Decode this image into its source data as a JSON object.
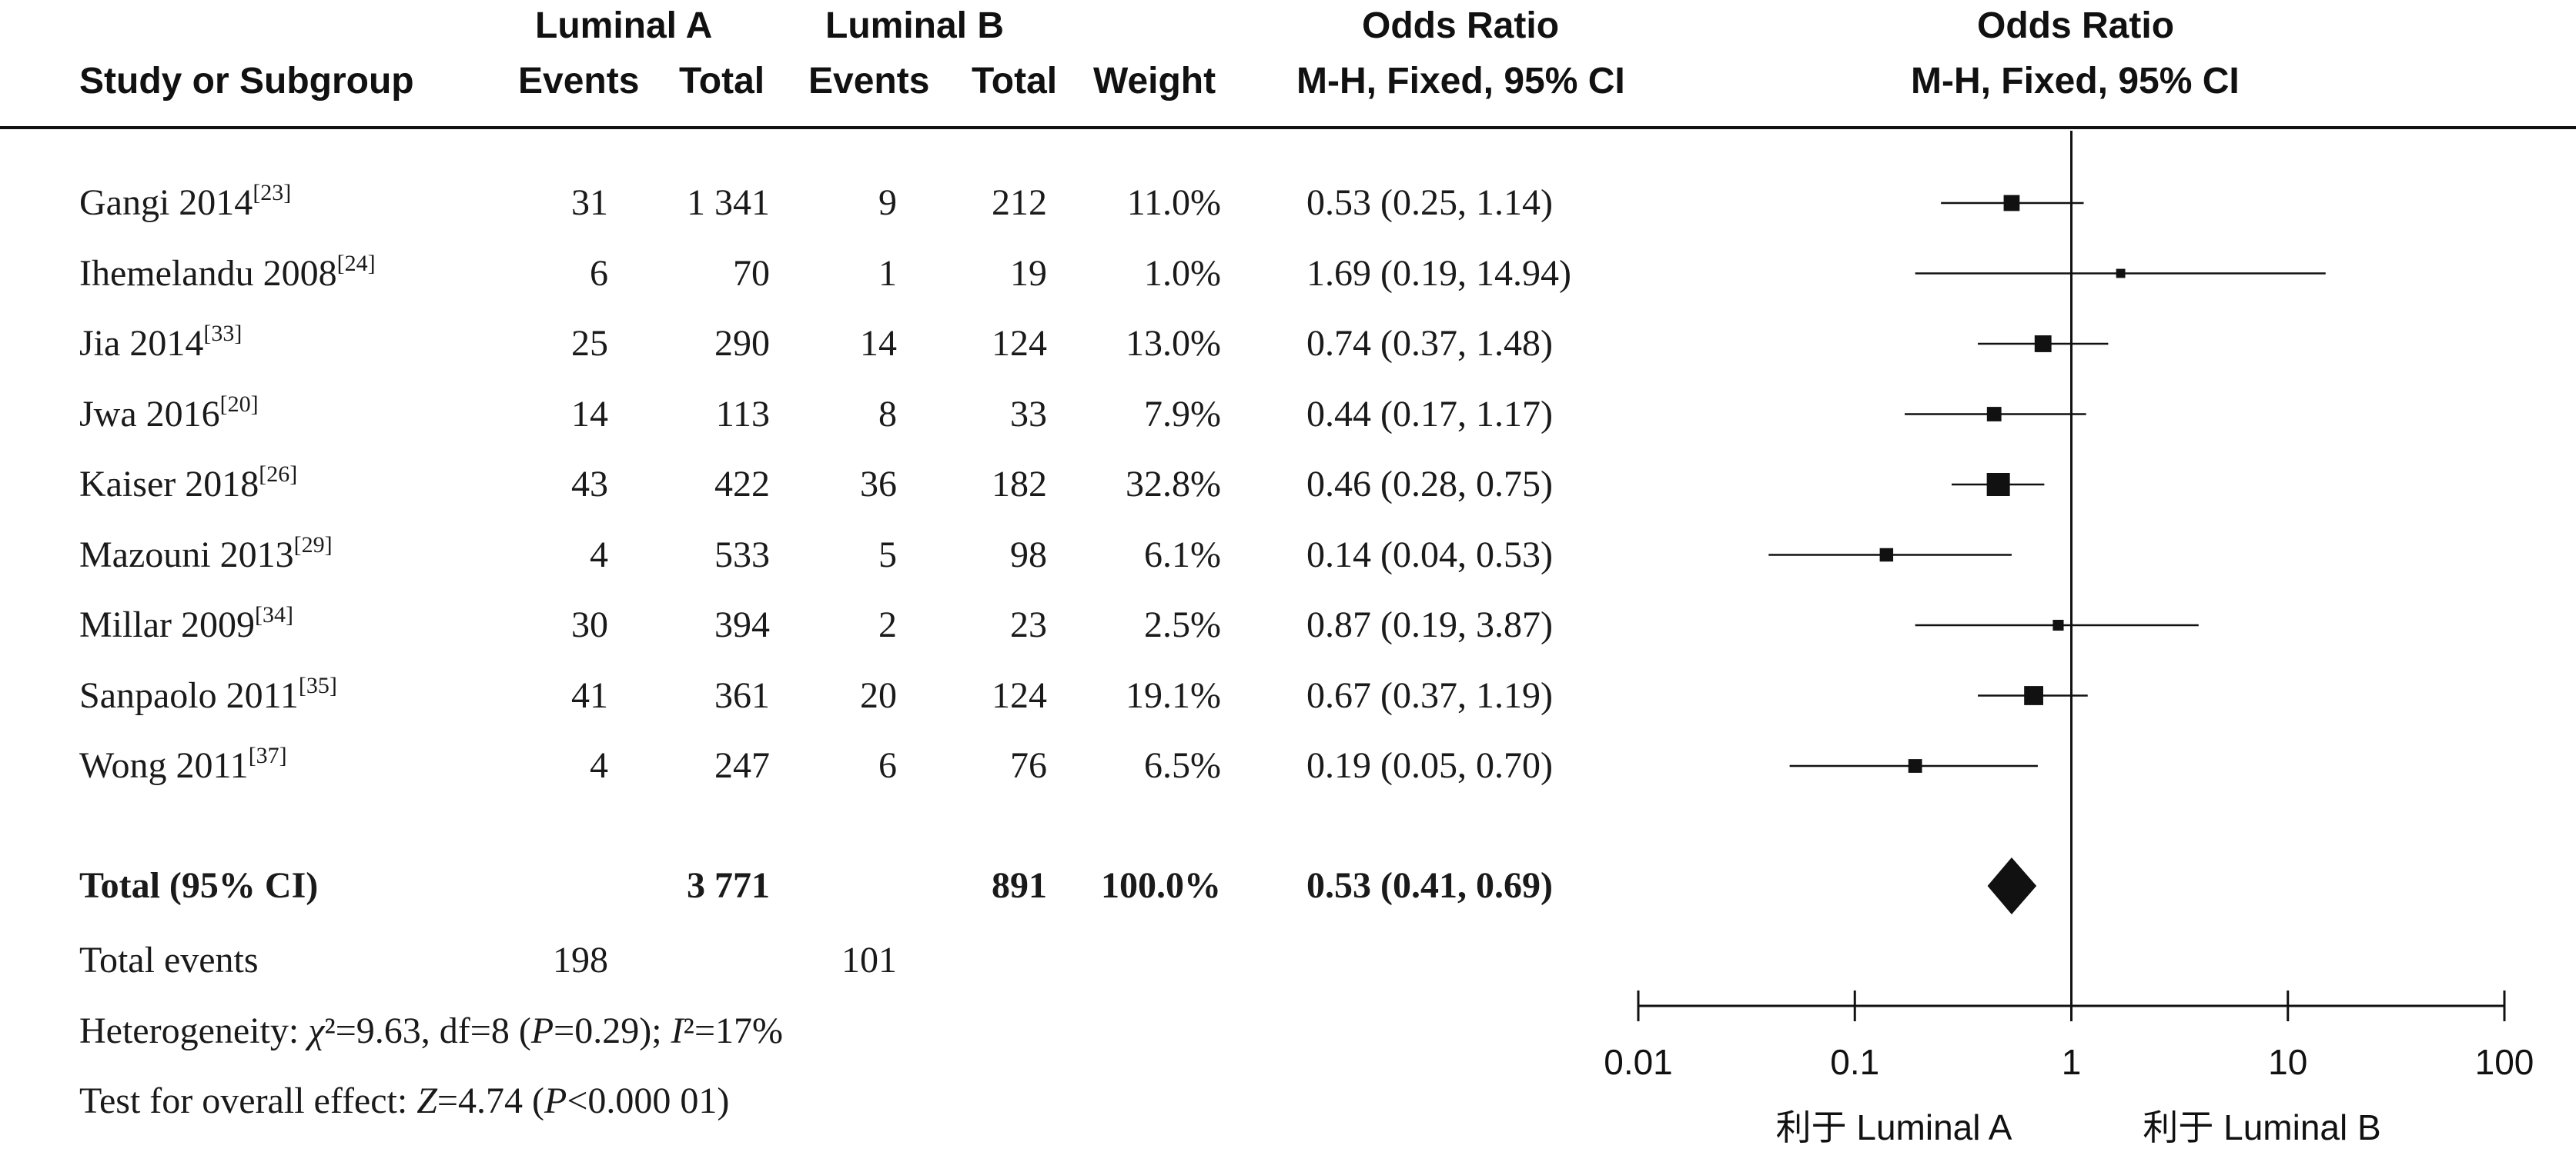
{
  "headers": {
    "study": "Study or Subgroup",
    "group_a": "Luminal A",
    "group_b": "Luminal B",
    "events": "Events",
    "total": "Total",
    "weight": "Weight",
    "or_title": "Odds Ratio",
    "or_method": "M-H, Fixed, 95% CI",
    "plot_title": "Odds Ratio",
    "plot_method": "M-H, Fixed, 95% CI"
  },
  "studies": [
    {
      "name": "Gangi 2014",
      "ref": "[23]",
      "a_events": "31",
      "a_total": "1 341",
      "b_events": "9",
      "b_total": "212",
      "weight": "11.0%",
      "ci_text": "0.53 (0.25, 1.14)"
    },
    {
      "name": "Ihemelandu 2008",
      "ref": "[24]",
      "a_events": "6",
      "a_total": "70",
      "b_events": "1",
      "b_total": "19",
      "weight": "1.0%",
      "ci_text": "1.69 (0.19, 14.94)"
    },
    {
      "name": "Jia 2014",
      "ref": "[33]",
      "a_events": "25",
      "a_total": "290",
      "b_events": "14",
      "b_total": "124",
      "weight": "13.0%",
      "ci_text": "0.74 (0.37, 1.48)"
    },
    {
      "name": "Jwa 2016",
      "ref": "[20]",
      "a_events": "14",
      "a_total": "113",
      "b_events": "8",
      "b_total": "33",
      "weight": "7.9%",
      "ci_text": "0.44 (0.17, 1.17)"
    },
    {
      "name": "Kaiser 2018",
      "ref": "[26]",
      "a_events": "43",
      "a_total": "422",
      "b_events": "36",
      "b_total": "182",
      "weight": "32.8%",
      "ci_text": "0.46 (0.28, 0.75)"
    },
    {
      "name": "Mazouni 2013",
      "ref": "[29]",
      "a_events": "4",
      "a_total": "533",
      "b_events": "5",
      "b_total": "98",
      "weight": "6.1%",
      "ci_text": "0.14 (0.04, 0.53)"
    },
    {
      "name": "Millar 2009",
      "ref": "[34]",
      "a_events": "30",
      "a_total": "394",
      "b_events": "2",
      "b_total": "23",
      "weight": "2.5%",
      "ci_text": "0.87 (0.19, 3.87)"
    },
    {
      "name": "Sanpaolo 2011",
      "ref": "[35]",
      "a_events": "41",
      "a_total": "361",
      "b_events": "20",
      "b_total": "124",
      "weight": "19.1%",
      "ci_text": "0.67 (0.37, 1.19)"
    },
    {
      "name": "Wong 2011",
      "ref": "[37]",
      "a_events": "4",
      "a_total": "247",
      "b_events": "6",
      "b_total": "76",
      "weight": "6.5%",
      "ci_text": "0.19 (0.05, 0.70)"
    }
  ],
  "total": {
    "label": "Total (95% CI)",
    "a_total": "3 771",
    "b_total": "891",
    "weight": "100.0%",
    "ci_text": "0.53 (0.41, 0.69)"
  },
  "total_events": {
    "label": "Total events",
    "a": "198",
    "b": "101"
  },
  "heterogeneity": {
    "label": "Heterogeneity: ",
    "chi": "χ",
    "chi_text": "²=9.63, df=8 (",
    "p": "P",
    "p_text": "=0.29); ",
    "i": "I",
    "i_text": "²=17%"
  },
  "overall_effect": {
    "label": "Test for overall effect: ",
    "z": "Z",
    "z_text": "=4.74 (",
    "p": "P",
    "p_text": "<0.000 01)"
  },
  "axis": {
    "ticks": [
      0.01,
      0.1,
      1,
      10,
      100
    ],
    "tick_labels": [
      "0.01",
      "0.1",
      "1",
      "10",
      "100"
    ],
    "favours_left": "利于 Luminal A",
    "favours_right": "利于 Luminal B"
  },
  "chart_data": {
    "type": "forest",
    "x_scale": "log",
    "xlim": [
      0.01,
      100
    ],
    "reference_line": 1,
    "studies": [
      {
        "name": "Gangi 2014",
        "or": 0.53,
        "lower": 0.25,
        "upper": 1.14,
        "weight": 11.0
      },
      {
        "name": "Ihemelandu 2008",
        "or": 1.69,
        "lower": 0.19,
        "upper": 14.94,
        "weight": 1.0
      },
      {
        "name": "Jia 2014",
        "or": 0.74,
        "lower": 0.37,
        "upper": 1.48,
        "weight": 13.0
      },
      {
        "name": "Jwa 2016",
        "or": 0.44,
        "lower": 0.17,
        "upper": 1.17,
        "weight": 7.9
      },
      {
        "name": "Kaiser 2018",
        "or": 0.46,
        "lower": 0.28,
        "upper": 0.75,
        "weight": 32.8
      },
      {
        "name": "Mazouni 2013",
        "or": 0.14,
        "lower": 0.04,
        "upper": 0.53,
        "weight": 6.1
      },
      {
        "name": "Millar 2009",
        "or": 0.87,
        "lower": 0.19,
        "upper": 3.87,
        "weight": 2.5
      },
      {
        "name": "Sanpaolo 2011",
        "or": 0.67,
        "lower": 0.37,
        "upper": 1.19,
        "weight": 19.1
      },
      {
        "name": "Wong 2011",
        "or": 0.19,
        "lower": 0.05,
        "upper": 0.7,
        "weight": 6.5
      }
    ],
    "pooled": {
      "or": 0.53,
      "lower": 0.41,
      "upper": 0.69
    }
  }
}
